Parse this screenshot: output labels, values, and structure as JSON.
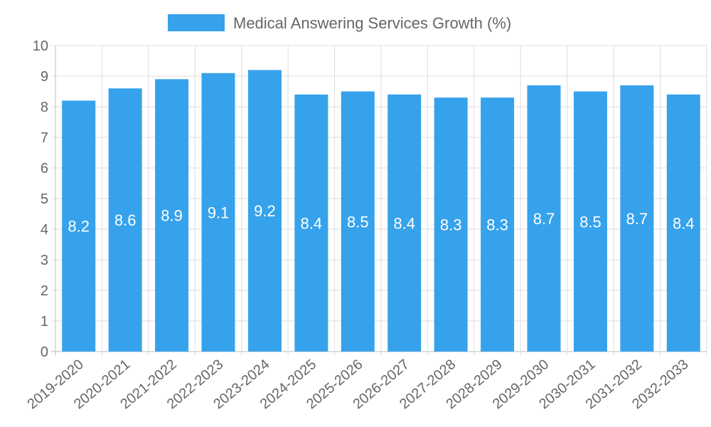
{
  "chart_data": {
    "type": "bar",
    "title": "",
    "legend": {
      "position": "top",
      "entries": [
        "Medical Answering Services Growth (%)"
      ]
    },
    "series": [
      {
        "name": "Medical Answering Services Growth (%)",
        "color": "#36a2eb",
        "values": [
          8.2,
          8.6,
          8.9,
          9.1,
          9.2,
          8.4,
          8.5,
          8.4,
          8.3,
          8.3,
          8.7,
          8.5,
          8.7,
          8.4
        ]
      }
    ],
    "categories": [
      "2019-2020",
      "2020-2021",
      "2021-2022",
      "2022-2023",
      "2023-2024",
      "2024-2025",
      "2025-2026",
      "2026-2027",
      "2027-2028",
      "2028-2029",
      "2029-2030",
      "2030-2031",
      "2031-2032",
      "2032-2033"
    ],
    "xlabel": "",
    "ylabel": "",
    "ylim": [
      0,
      10
    ],
    "yticks": [
      "0",
      "1",
      "2",
      "3",
      "4",
      "5",
      "6",
      "7",
      "8",
      "9",
      "10"
    ],
    "grid": true,
    "data_labels": [
      "8.2",
      "8.6",
      "8.9",
      "9.1",
      "9.2",
      "8.4",
      "8.5",
      "8.4",
      "8.3",
      "8.3",
      "8.7",
      "8.5",
      "8.7",
      "8.4"
    ]
  }
}
